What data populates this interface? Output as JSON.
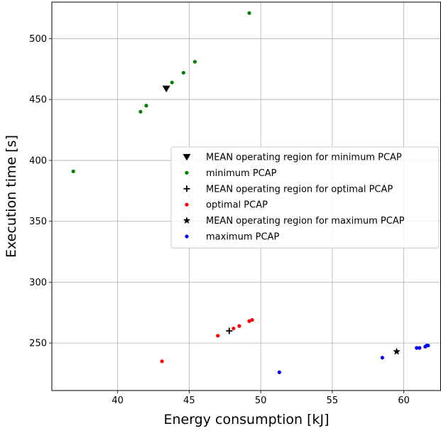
{
  "chart_data": {
    "type": "scatter",
    "title": "",
    "xlabel": "Energy consumption [kJ]",
    "ylabel": "Execution time [s]",
    "xlim": [
      35.4,
      62.6
    ],
    "ylim": [
      211,
      530
    ],
    "xticks": [
      40,
      45,
      50,
      55,
      60
    ],
    "yticks": [
      250,
      300,
      350,
      400,
      450,
      500
    ],
    "grid": true,
    "legend_position": "center-right",
    "series": [
      {
        "name": "MEAN operating region for minimum PCAP",
        "marker": "triangle-down",
        "color": "#000000",
        "points": [
          {
            "x": 43.4,
            "y": 459
          }
        ]
      },
      {
        "name": "minimum PCAP",
        "marker": "dot",
        "color": "#008000",
        "points": [
          {
            "x": 36.9,
            "y": 391
          },
          {
            "x": 41.6,
            "y": 440
          },
          {
            "x": 42.0,
            "y": 445
          },
          {
            "x": 43.8,
            "y": 464
          },
          {
            "x": 44.6,
            "y": 472
          },
          {
            "x": 45.4,
            "y": 481
          },
          {
            "x": 49.2,
            "y": 521
          }
        ]
      },
      {
        "name": "MEAN operating region for optimal PCAP",
        "marker": "plus",
        "color": "#000000",
        "points": [
          {
            "x": 47.8,
            "y": 260
          }
        ]
      },
      {
        "name": "optimal PCAP",
        "marker": "dot",
        "color": "#ff0000",
        "points": [
          {
            "x": 43.1,
            "y": 235
          },
          {
            "x": 47.0,
            "y": 256
          },
          {
            "x": 48.1,
            "y": 262
          },
          {
            "x": 48.5,
            "y": 264
          },
          {
            "x": 49.2,
            "y": 268
          },
          {
            "x": 49.4,
            "y": 269
          }
        ]
      },
      {
        "name": "MEAN operating region for maximum PCAP",
        "marker": "star",
        "color": "#000000",
        "points": [
          {
            "x": 59.5,
            "y": 243
          }
        ]
      },
      {
        "name": "maximum PCAP",
        "marker": "dot",
        "color": "#0000ff",
        "points": [
          {
            "x": 51.3,
            "y": 226
          },
          {
            "x": 58.5,
            "y": 238
          },
          {
            "x": 60.9,
            "y": 246
          },
          {
            "x": 61.1,
            "y": 246
          },
          {
            "x": 61.5,
            "y": 247
          },
          {
            "x": 61.6,
            "y": 248
          },
          {
            "x": 61.7,
            "y": 248
          }
        ]
      }
    ]
  }
}
